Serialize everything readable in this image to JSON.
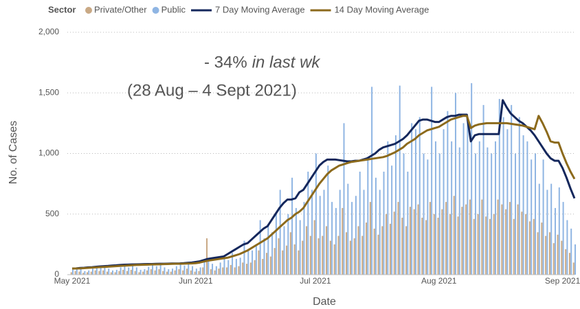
{
  "chart_data": {
    "type": "bar",
    "legend_title": "Sector",
    "legend": "top",
    "xlabel": "Date",
    "ylabel": "No. of Cases",
    "annotations": [
      "- 34%",
      "in last wk",
      "(28 Aug  – 4 Sept 2021)"
    ],
    "annotation_color": "#e8141c",
    "ylim": [
      0,
      2000
    ],
    "yticks": [
      0,
      500,
      {
        "value": 1000,
        "label": "1,000"
      },
      {
        "value": 1500,
        "label": "1,500"
      },
      {
        "value": 2000,
        "label": "2,000"
      }
    ],
    "grid": true,
    "categories": [
      "May 2021",
      null,
      null,
      null,
      null,
      null,
      null,
      null,
      null,
      null,
      null,
      null,
      null,
      null,
      null,
      null,
      null,
      null,
      null,
      null,
      null,
      null,
      null,
      null,
      null,
      null,
      null,
      null,
      null,
      null,
      null,
      "Jun 2021",
      null,
      null,
      null,
      null,
      null,
      null,
      null,
      null,
      null,
      null,
      null,
      null,
      null,
      null,
      null,
      null,
      null,
      null,
      null,
      null,
      null,
      null,
      null,
      null,
      null,
      null,
      null,
      null,
      null,
      "Jul 2021",
      null,
      null,
      null,
      null,
      null,
      null,
      null,
      null,
      null,
      null,
      null,
      null,
      null,
      null,
      null,
      null,
      null,
      null,
      null,
      null,
      null,
      null,
      null,
      null,
      null,
      null,
      null,
      null,
      null,
      null,
      "Aug 2021",
      null,
      null,
      null,
      null,
      null,
      null,
      null,
      null,
      null,
      null,
      null,
      null,
      null,
      null,
      null,
      null,
      null,
      null,
      null,
      null,
      null,
      null,
      null,
      null,
      null,
      null,
      null,
      null,
      null,
      null,
      "Sep 2021",
      null,
      null,
      null
    ],
    "series": [
      {
        "name": "Private/Other",
        "type": "bar",
        "color": "#c9a985",
        "values": [
          20,
          30,
          25,
          15,
          20,
          25,
          35,
          30,
          35,
          25,
          20,
          20,
          30,
          40,
          30,
          40,
          30,
          20,
          25,
          35,
          45,
          35,
          45,
          30,
          25,
          25,
          35,
          45,
          35,
          50,
          35,
          25,
          30,
          60,
          300,
          45,
          35,
          50,
          60,
          60,
          80,
          60,
          70,
          100,
          90,
          100,
          120,
          200,
          130,
          180,
          150,
          220,
          300,
          200,
          240,
          350,
          250,
          200,
          280,
          400,
          320,
          450,
          300,
          320,
          400,
          280,
          250,
          320,
          550,
          350,
          280,
          300,
          400,
          320,
          430,
          600,
          380,
          330,
          400,
          500,
          420,
          520,
          600,
          470,
          400,
          560,
          540,
          580,
          470,
          450,
          600,
          500,
          470,
          540,
          600,
          500,
          650,
          480,
          560,
          580,
          620,
          460,
          500,
          620,
          480,
          460,
          500,
          620,
          580,
          540,
          600,
          460,
          580,
          520,
          500,
          440,
          460,
          350,
          430,
          320,
          350,
          260,
          330,
          280,
          210,
          180,
          100
        ]
      },
      {
        "name": "Public",
        "type": "bar",
        "color": "#8fb5e3",
        "values": [
          40,
          60,
          45,
          30,
          35,
          50,
          70,
          55,
          75,
          50,
          35,
          40,
          60,
          80,
          60,
          85,
          60,
          40,
          45,
          65,
          90,
          70,
          90,
          60,
          45,
          50,
          70,
          95,
          75,
          100,
          70,
          50,
          60,
          120,
          130,
          90,
          70,
          100,
          150,
          120,
          180,
          130,
          140,
          280,
          200,
          200,
          250,
          450,
          300,
          420,
          350,
          500,
          700,
          400,
          500,
          800,
          550,
          450,
          600,
          850,
          700,
          1000,
          650,
          700,
          900,
          600,
          550,
          700,
          1250,
          750,
          600,
          650,
          850,
          700,
          950,
          1550,
          800,
          700,
          850,
          1100,
          900,
          1150,
          1560,
          1000,
          850,
          1250,
          1200,
          1300,
          1000,
          950,
          1550,
          1100,
          1000,
          1200,
          1350,
          1100,
          1500,
          1050,
          1250,
          1300,
          1580,
          1000,
          1100,
          1400,
          1050,
          1000,
          1100,
          1450,
          1300,
          1200,
          1400,
          1000,
          1300,
          1150,
          1100,
          950,
          1000,
          750,
          950,
          700,
          750,
          550,
          720,
          600,
          450,
          380,
          250
        ]
      },
      {
        "name": "7 Day Moving Average",
        "type": "line",
        "color": "#14275c",
        "values": [
          50,
          52,
          55,
          57,
          60,
          62,
          65,
          68,
          70,
          72,
          75,
          77,
          80,
          82,
          83,
          84,
          85,
          86,
          87,
          88,
          88,
          89,
          90,
          90,
          91,
          92,
          92,
          93,
          95,
          98,
          100,
          105,
          110,
          120,
          130,
          135,
          140,
          145,
          150,
          170,
          190,
          210,
          230,
          250,
          260,
          290,
          320,
          350,
          380,
          400,
          450,
          500,
          550,
          590,
          620,
          620,
          630,
          680,
          700,
          750,
          800,
          850,
          900,
          930,
          950,
          950,
          950,
          945,
          940,
          935,
          935,
          940,
          940,
          950,
          960,
          980,
          1000,
          1030,
          1050,
          1060,
          1070,
          1080,
          1100,
          1120,
          1150,
          1190,
          1230,
          1270,
          1280,
          1280,
          1270,
          1260,
          1260,
          1280,
          1300,
          1310,
          1310,
          1320,
          1320,
          1320,
          1100,
          1150,
          1160,
          1160,
          1160,
          1160,
          1160,
          1160,
          1440,
          1380,
          1330,
          1300,
          1270,
          1250,
          1220,
          1190,
          1150,
          1100,
          1050,
          1000,
          960,
          940,
          940,
          880,
          800,
          710,
          630
        ]
      },
      {
        "name": "14 Day Moving Average",
        "type": "line",
        "color": "#8c6a1c",
        "values": [
          50,
          51,
          52,
          54,
          56,
          58,
          60,
          62,
          64,
          66,
          68,
          70,
          72,
          74,
          76,
          78,
          80,
          81,
          82,
          83,
          84,
          85,
          86,
          87,
          88,
          89,
          90,
          90,
          91,
          92,
          93,
          95,
          100,
          108,
          115,
          120,
          125,
          130,
          135,
          140,
          150,
          160,
          170,
          185,
          200,
          220,
          240,
          260,
          280,
          300,
          330,
          360,
          390,
          420,
          450,
          470,
          500,
          520,
          550,
          600,
          650,
          700,
          750,
          790,
          830,
          860,
          880,
          900,
          910,
          920,
          930,
          935,
          940,
          945,
          950,
          955,
          960,
          965,
          970,
          980,
          995,
          1010,
          1030,
          1050,
          1080,
          1100,
          1120,
          1150,
          1170,
          1190,
          1200,
          1210,
          1220,
          1240,
          1260,
          1280,
          1290,
          1300,
          1310,
          1310,
          1210,
          1230,
          1240,
          1245,
          1250,
          1250,
          1250,
          1250,
          1250,
          1250,
          1245,
          1240,
          1235,
          1230,
          1220,
          1210,
          1200,
          1310,
          1250,
          1180,
          1100,
          1090,
          1090,
          1000,
          920,
          850,
          790
        ]
      }
    ]
  }
}
